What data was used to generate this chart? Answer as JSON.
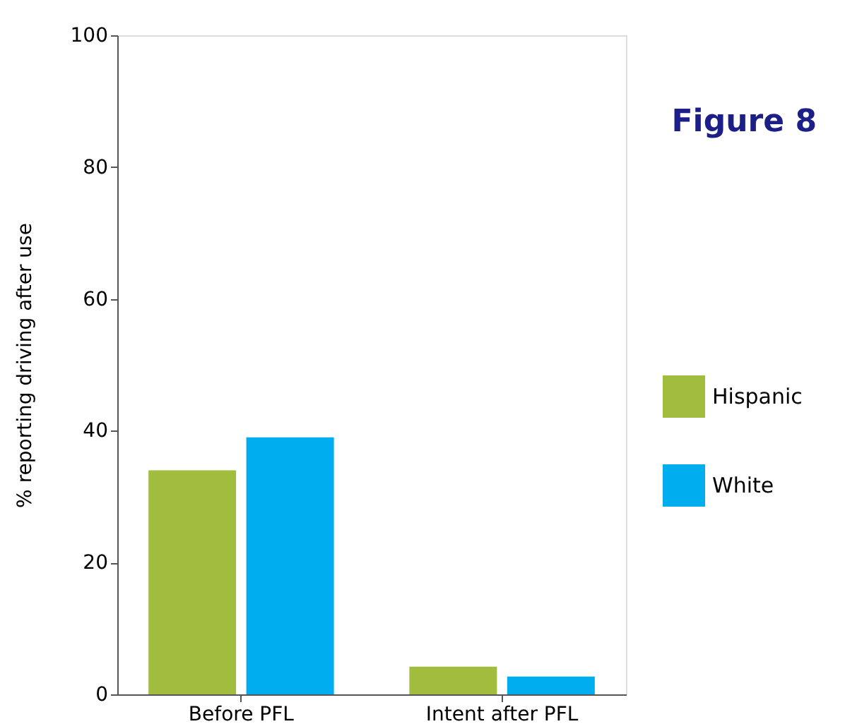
{
  "chart_data": {
    "type": "bar",
    "title": "Figure 8",
    "ylabel": "% reporting driving after use",
    "categories": [
      "Before PFL",
      "Intent after PFL"
    ],
    "series": [
      {
        "name": "Hispanic",
        "color": "#a2bd3e",
        "values": [
          34,
          4.2
        ]
      },
      {
        "name": "White",
        "color": "#00adee",
        "values": [
          39,
          2.7
        ]
      }
    ],
    "ylim": [
      0,
      100
    ],
    "yticks": [
      0,
      20,
      40,
      60,
      80,
      100
    ],
    "grid": false,
    "legend": "right"
  }
}
